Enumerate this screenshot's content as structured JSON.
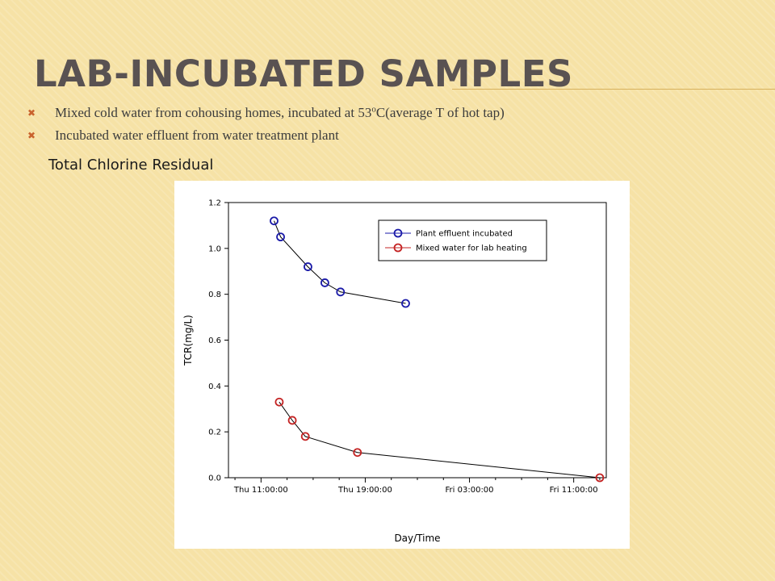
{
  "slide": {
    "title": "Lab-incubated samples",
    "bullets": [
      {
        "pre": "Mixed cold water from cohousing homes,  incubated at 53",
        "sup": "o",
        "post": "C(average T of hot tap)"
      },
      {
        "pre": "Incubated water effluent from water treatment plant",
        "sup": "",
        "post": ""
      }
    ],
    "bullet_mark": "✖"
  },
  "chart_data": {
    "type": "line",
    "title": "Total Chlorine Residual",
    "xlabel": "Day/Time",
    "ylabel": "TCR(mg/L)",
    "x_unit": "hours since Thu 11:00",
    "xlim": [
      -2.5,
      26.5
    ],
    "ylim": [
      0.0,
      1.2
    ],
    "xticks": [
      {
        "value": 0,
        "label": "Thu 11:00:00"
      },
      {
        "value": 8,
        "label": "Thu 19:00:00"
      },
      {
        "value": 16,
        "label": "Fri 03:00:00"
      },
      {
        "value": 24,
        "label": "Fri 11:00:00"
      }
    ],
    "yticks": [
      {
        "value": 0.0,
        "label": "0.0"
      },
      {
        "value": 0.2,
        "label": "0.2"
      },
      {
        "value": 0.4,
        "label": "0.4"
      },
      {
        "value": 0.6,
        "label": "0.6"
      },
      {
        "value": 0.8,
        "label": "0.8"
      },
      {
        "value": 1.0,
        "label": "1.0"
      },
      {
        "value": 1.2,
        "label": "1.2"
      }
    ],
    "grid": false,
    "legend_position": "top-right",
    "series": [
      {
        "name": "Plant effluent incubated",
        "color": "#1a1aa8",
        "x": [
          1.0,
          1.5,
          3.6,
          4.9,
          6.1,
          11.1
        ],
        "y": [
          1.12,
          1.05,
          0.92,
          0.85,
          0.81,
          0.76
        ]
      },
      {
        "name": "Mixed water for lab heating",
        "color": "#c42424",
        "x": [
          1.4,
          2.4,
          3.4,
          7.4,
          26.0
        ],
        "y": [
          0.33,
          0.25,
          0.18,
          0.11,
          0.0
        ]
      }
    ]
  }
}
